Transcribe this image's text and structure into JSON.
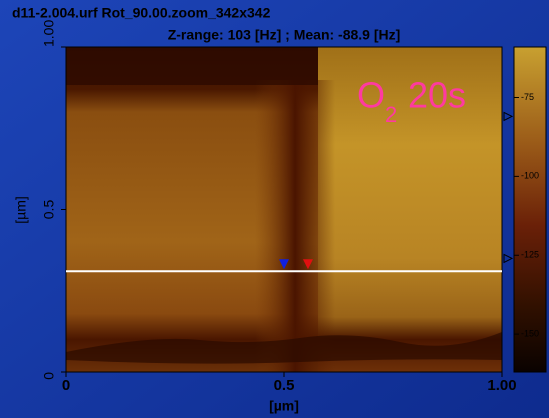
{
  "chart_data": {
    "type": "heatmap",
    "title": "d11-2.004.urf Rot_90.00.zoom_342x342",
    "subtitle": "Z-range:   103 [Hz] ; Mean: -88.9 [Hz]",
    "annotation": {
      "base": "O",
      "subscript": "2",
      "suffix": "20s",
      "color": "#ff3aa0"
    },
    "x_label": "[µm]",
    "y_label": "[µm]",
    "xlim": [
      0,
      1
    ],
    "ylim": [
      0,
      1
    ],
    "xticks": [
      0,
      0.5,
      {
        "value": 1,
        "label": "1.00"
      }
    ],
    "yticks": [
      0,
      0.5,
      {
        "value": 1,
        "label": "1.00"
      }
    ],
    "clim": [
      -59,
      -162
    ],
    "cticks": [
      -75,
      -100,
      -125,
      -150
    ],
    "colorbar_markers": [
      -81,
      -126
    ],
    "cursor": {
      "y": 0.31,
      "markers": [
        {
          "x": 0.5,
          "color": "#1020e0"
        },
        {
          "x": 0.555,
          "color": "#e01010"
        }
      ]
    }
  }
}
